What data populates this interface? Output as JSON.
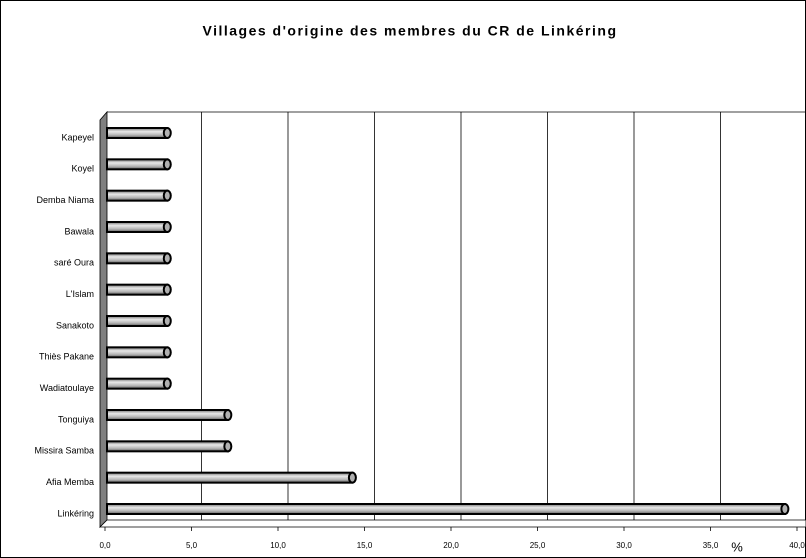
{
  "chart_data": {
    "type": "bar",
    "orientation": "horizontal",
    "title": "Villages d'origine des membres du CR de Linkéring",
    "x_label": "%",
    "categories": [
      "Kapeyel",
      "Koyel",
      "Demba Niama",
      "Bawala",
      "saré Oura",
      "L'Islam",
      "Sanakoto",
      "Thiès Pakane",
      "Wadiatoulaye",
      "Tonguiya",
      "Missira Samba",
      "Afia Memba",
      "Linkéring"
    ],
    "values": [
      3.6,
      3.6,
      3.6,
      3.6,
      3.6,
      3.6,
      3.6,
      3.6,
      3.6,
      7.1,
      7.1,
      14.3,
      39.3
    ],
    "color": "#b0b0b0",
    "xlim": [
      0,
      40
    ],
    "xticks": [
      {
        "value": 0,
        "label": "0,0"
      },
      {
        "value": 5,
        "label": "5,0"
      },
      {
        "value": 10,
        "label": "10,0"
      },
      {
        "value": 15,
        "label": "15,0"
      },
      {
        "value": 20,
        "label": "20,0"
      },
      {
        "value": 25,
        "label": "25,0"
      },
      {
        "value": 30,
        "label": "30,0"
      },
      {
        "value": 35,
        "label": "35,0"
      },
      {
        "value": 40,
        "label": "40,0"
      }
    ],
    "grid": true
  }
}
